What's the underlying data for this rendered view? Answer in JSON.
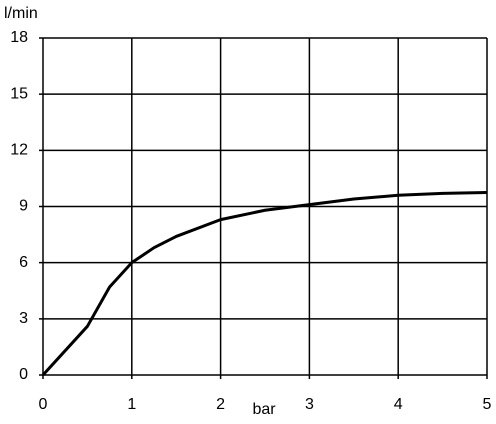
{
  "chart_data": {
    "type": "line",
    "y_label": "l/min",
    "x_label": "bar",
    "xlim": [
      0,
      5
    ],
    "ylim": [
      0,
      18
    ],
    "xticks": [
      0,
      1,
      2,
      3,
      4,
      5
    ],
    "yticks": [
      0,
      3,
      6,
      9,
      12,
      15,
      18
    ],
    "grid": true,
    "x": [
      0,
      0.5,
      0.75,
      1,
      1.25,
      1.5,
      2,
      2.5,
      3,
      3.5,
      4,
      4.5,
      5
    ],
    "series": [
      {
        "color": "#000000",
        "values": [
          0,
          2.6,
          4.7,
          6,
          6.8,
          7.4,
          8.3,
          8.8,
          9.1,
          9.4,
          9.6,
          9.7,
          9.75
        ]
      }
    ]
  }
}
